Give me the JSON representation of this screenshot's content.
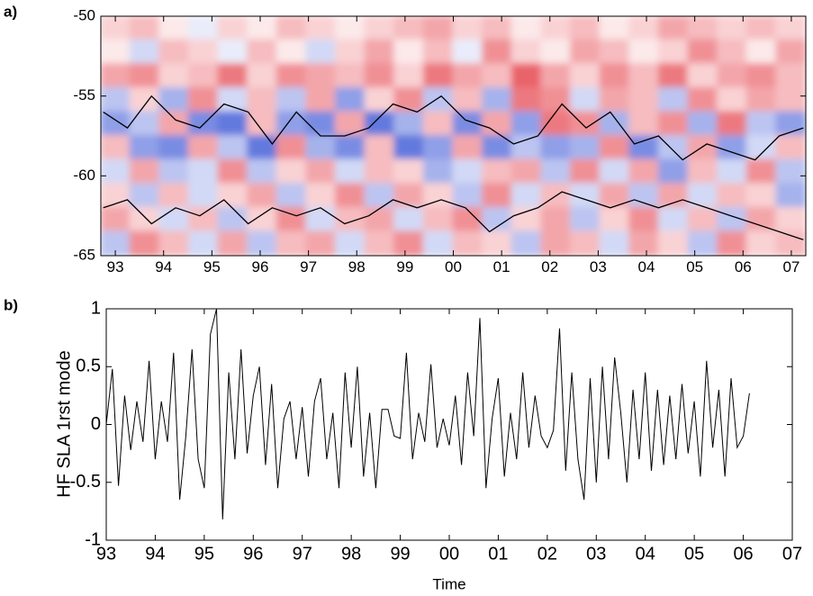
{
  "chart_data": [
    {
      "type": "heatmap",
      "label": "a)",
      "xlim": [
        1992.7,
        2007.3
      ],
      "ylim": [
        -65,
        -50
      ],
      "xticks": [
        {
          "value": 1993,
          "label": "93"
        },
        {
          "value": 1994,
          "label": "94"
        },
        {
          "value": 1995,
          "label": "95"
        },
        {
          "value": 1996,
          "label": "96"
        },
        {
          "value": 1997,
          "label": "97"
        },
        {
          "value": 1998,
          "label": "98"
        },
        {
          "value": 1999,
          "label": "99"
        },
        {
          "value": 2000,
          "label": "00"
        },
        {
          "value": 2001,
          "label": "01"
        },
        {
          "value": 2002,
          "label": "02"
        },
        {
          "value": 2003,
          "label": "03"
        },
        {
          "value": 2004,
          "label": "04"
        },
        {
          "value": 2005,
          "label": "05"
        },
        {
          "value": 2006,
          "label": "06"
        },
        {
          "value": 2007,
          "label": "07"
        }
      ],
      "yticks": [
        -50,
        -55,
        -60,
        -65
      ],
      "zlim": [
        -1,
        1
      ],
      "low_color": "#1f3fd0",
      "high_color": "#e0202a",
      "z": [
        [
          0.2,
          0.3,
          0.1,
          -0.1,
          0.2,
          0.1,
          0.3,
          0.2,
          0.1,
          0.2,
          0.3,
          0.4,
          0.2,
          0.3,
          0.1,
          0.2,
          0.3,
          0.1,
          0.2,
          0.4,
          0.3,
          0.2,
          0.3,
          0.2
        ],
        [
          0.1,
          -0.2,
          0.3,
          0.2,
          -0.1,
          0.3,
          0.1,
          -0.2,
          0.2,
          0.4,
          0.1,
          0.3,
          -0.1,
          0.5,
          0.2,
          0.1,
          0.4,
          0.3,
          0.1,
          0.2,
          0.5,
          0.3,
          0.1,
          0.4
        ],
        [
          0.4,
          0.5,
          0.2,
          0.3,
          0.6,
          0.2,
          0.5,
          0.4,
          0.3,
          0.5,
          0.2,
          0.6,
          0.4,
          0.3,
          0.7,
          0.4,
          0.2,
          0.5,
          0.3,
          0.6,
          0.2,
          0.4,
          0.5,
          0.3
        ],
        [
          -0.3,
          0.2,
          -0.4,
          0.5,
          -0.2,
          0.3,
          -0.3,
          0.4,
          -0.5,
          0.2,
          0.5,
          -0.3,
          0.3,
          -0.4,
          0.6,
          0.5,
          -0.2,
          0.4,
          0.3,
          -0.3,
          0.5,
          0.2,
          0.4,
          0.3
        ],
        [
          -0.5,
          -0.3,
          0.4,
          -0.6,
          -0.7,
          0.3,
          -0.5,
          -0.6,
          0.4,
          -0.7,
          -0.4,
          0.3,
          -0.6,
          0.4,
          -0.5,
          0.6,
          0.5,
          -0.4,
          0.3,
          0.5,
          -0.4,
          0.6,
          -0.3,
          -0.5
        ],
        [
          0.3,
          -0.5,
          -0.6,
          0.4,
          -0.3,
          -0.7,
          0.5,
          -0.4,
          -0.6,
          0.3,
          -0.7,
          -0.5,
          0.4,
          -0.6,
          -0.3,
          -0.5,
          -0.4,
          0.5,
          -0.6,
          -0.3,
          0.4,
          -0.5,
          -0.2,
          0.3
        ],
        [
          -0.2,
          0.4,
          -0.3,
          -0.2,
          0.5,
          -0.3,
          0.2,
          0.4,
          -0.2,
          0.3,
          0.2,
          -0.4,
          -0.2,
          0.3,
          0.4,
          -0.3,
          0.5,
          -0.2,
          0.4,
          -0.5,
          0.3,
          -0.2,
          0.5,
          -0.3
        ],
        [
          0.2,
          -0.3,
          0.3,
          -0.2,
          0.2,
          0.4,
          -0.3,
          0.2,
          0.5,
          -0.3,
          0.4,
          0.2,
          -0.3,
          0.5,
          -0.2,
          0.3,
          -0.2,
          0.4,
          -0.3,
          0.4,
          -0.2,
          0.3,
          0.2,
          -0.4
        ],
        [
          0.4,
          0.2,
          -0.2,
          0.3,
          -0.3,
          0.2,
          0.5,
          -0.2,
          0.3,
          0.4,
          -0.2,
          0.3,
          0.5,
          -0.3,
          0.2,
          0.4,
          -0.3,
          0.2,
          0.5,
          -0.2,
          0.3,
          -0.3,
          0.4,
          0.2
        ],
        [
          -0.3,
          0.5,
          0.3,
          -0.2,
          0.4,
          -0.3,
          0.3,
          0.4,
          -0.2,
          0.3,
          0.5,
          -0.2,
          0.3,
          0.2,
          -0.3,
          0.4,
          0.3,
          -0.2,
          0.4,
          0.2,
          -0.3,
          0.5,
          0.2,
          0.3
        ]
      ],
      "x": [
        1992.75,
        1993.25,
        1993.75,
        1994.25,
        1994.75,
        1995.25,
        1995.75,
        1996.25,
        1996.75,
        1997.25,
        1997.75,
        1998.25,
        1998.75,
        1999.25,
        1999.75,
        2000.25,
        2000.75,
        2001.25,
        2001.75,
        2002.25,
        2002.75,
        2003.25,
        2003.75,
        2004.25,
        2004.75,
        2005.25,
        2005.75,
        2006.25,
        2006.75,
        2007.25
      ],
      "series": [
        {
          "color": "#000000",
          "values": [
            -56,
            -57,
            -55,
            -56.5,
            -57,
            -55.5,
            -56,
            -58,
            -56,
            -57.5,
            -57.5,
            -57,
            -55.5,
            -56,
            -55,
            -56.5,
            -57,
            -58,
            -57.5,
            -55.5,
            -57,
            -56,
            -58,
            -57.5,
            -59,
            -58,
            -58.5,
            -59,
            -57.5,
            -57
          ]
        },
        {
          "color": "#000000",
          "values": [
            -62,
            -61.5,
            -63,
            -62,
            -62.5,
            -61.5,
            -63,
            -62,
            -62.5,
            -62,
            -63,
            -62.5,
            -61.5,
            -62,
            -61.5,
            -62,
            -63.5,
            -62.5,
            -62,
            -61,
            -61.5,
            -62,
            -61.5,
            -62,
            -61.5,
            -62,
            -62.5,
            -63,
            -63.5,
            -64
          ]
        }
      ]
    },
    {
      "type": "line",
      "label": "b)",
      "ylabel": "HF SLA 1rst mode",
      "xlabel": "Time",
      "color": "#000000",
      "xlim": [
        1993,
        2007
      ],
      "ylim": [
        -1,
        1
      ],
      "xticks": [
        {
          "value": 1993,
          "label": "93"
        },
        {
          "value": 1994,
          "label": "94"
        },
        {
          "value": 1995,
          "label": "95"
        },
        {
          "value": 1996,
          "label": "96"
        },
        {
          "value": 1997,
          "label": "97"
        },
        {
          "value": 1998,
          "label": "98"
        },
        {
          "value": 1999,
          "label": "99"
        },
        {
          "value": 2000,
          "label": "00"
        },
        {
          "value": 2001,
          "label": "01"
        },
        {
          "value": 2002,
          "label": "02"
        },
        {
          "value": 2003,
          "label": "03"
        },
        {
          "value": 2004,
          "label": "04"
        },
        {
          "value": 2005,
          "label": "05"
        },
        {
          "value": 2006,
          "label": "06"
        },
        {
          "value": 2007,
          "label": "07"
        }
      ],
      "yticks": [
        -1,
        -0.5,
        0,
        0.5,
        1
      ],
      "x": [
        1993,
        1993.125,
        1993.25,
        1993.375,
        1993.5,
        1993.625,
        1993.75,
        1993.875,
        1994,
        1994.125,
        1994.25,
        1994.375,
        1994.5,
        1994.625,
        1994.75,
        1994.875,
        1995,
        1995.125,
        1995.25,
        1995.375,
        1995.5,
        1995.625,
        1995.75,
        1995.875,
        1996,
        1996.125,
        1996.25,
        1996.375,
        1996.5,
        1996.625,
        1996.75,
        1996.875,
        1997,
        1997.125,
        1997.25,
        1997.375,
        1997.5,
        1997.625,
        1997.75,
        1997.875,
        1998,
        1998.125,
        1998.25,
        1998.375,
        1998.5,
        1998.625,
        1998.75,
        1998.875,
        1999,
        1999.125,
        1999.25,
        1999.375,
        1999.5,
        1999.625,
        1999.75,
        1999.875,
        2000,
        2000.125,
        2000.25,
        2000.375,
        2000.5,
        2000.625,
        2000.75,
        2000.875,
        2001,
        2001.125,
        2001.25,
        2001.375,
        2001.5,
        2001.625,
        2001.75,
        2001.875,
        2002,
        2002.125,
        2002.25,
        2002.375,
        2002.5,
        2002.625,
        2002.75,
        2002.875,
        2003,
        2003.125,
        2003.25,
        2003.375,
        2003.5,
        2003.625,
        2003.75,
        2003.875,
        2004,
        2004.125,
        2004.25,
        2004.375,
        2004.5,
        2004.625,
        2004.75,
        2004.875,
        2005,
        2005.125,
        2005.25,
        2005.375,
        2005.5,
        2005.625,
        2005.75,
        2005.875,
        2006,
        2006.125
      ],
      "values": [
        0,
        0.48,
        -0.53,
        0.25,
        -0.22,
        0.2,
        -0.15,
        0.55,
        -0.3,
        0.2,
        -0.15,
        0.62,
        -0.65,
        -0.1,
        0.65,
        -0.3,
        -0.55,
        0.78,
        1.0,
        -0.82,
        0.45,
        -0.3,
        0.65,
        -0.25,
        0.25,
        0.5,
        -0.35,
        0.35,
        -0.55,
        0.05,
        0.2,
        -0.3,
        0.15,
        -0.45,
        0.2,
        0.4,
        -0.3,
        0.1,
        -0.55,
        0.45,
        -0.2,
        0.5,
        -0.45,
        0.1,
        -0.55,
        0.13,
        0.13,
        -0.1,
        -0.12,
        0.62,
        -0.3,
        0.1,
        -0.15,
        0.52,
        -0.2,
        0.05,
        -0.18,
        0.25,
        -0.35,
        0.45,
        -0.1,
        0.92,
        -0.55,
        0.05,
        0.4,
        -0.45,
        0.1,
        -0.3,
        0.45,
        -0.2,
        0.25,
        -0.1,
        -0.2,
        -0.05,
        0.83,
        -0.4,
        0.45,
        -0.3,
        -0.65,
        0.4,
        -0.5,
        0.5,
        -0.3,
        0.58,
        0.1,
        -0.5,
        0.3,
        -0.3,
        0.45,
        -0.4,
        0.3,
        -0.35,
        0.25,
        -0.3,
        0.35,
        -0.25,
        0.2,
        -0.45,
        0.55,
        -0.2,
        0.3,
        -0.45,
        0.4,
        -0.2,
        -0.1,
        0.27
      ]
    }
  ]
}
